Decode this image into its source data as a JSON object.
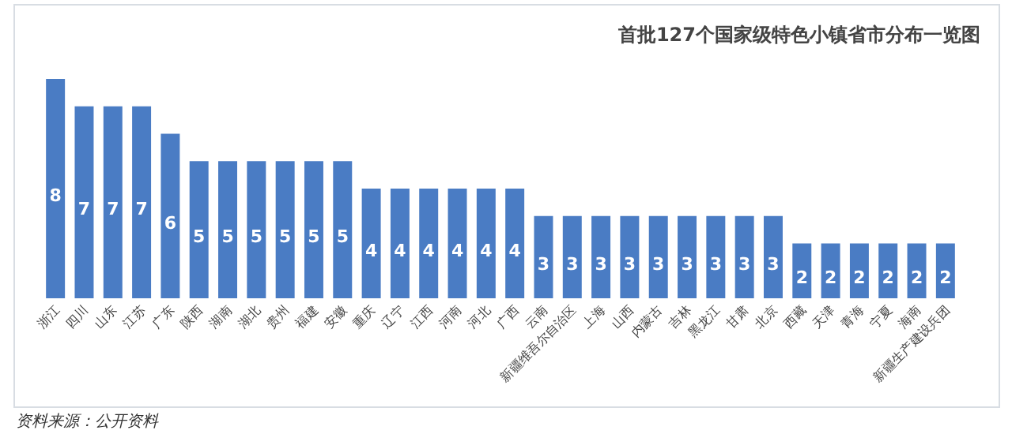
{
  "chart_data": {
    "type": "bar",
    "title": "首批127个国家级特色小镇省市分布一览图",
    "categories": [
      "浙江",
      "四川",
      "山东",
      "江苏",
      "广东",
      "陕西",
      "湖南",
      "湖北",
      "贵州",
      "福建",
      "安徽",
      "重庆",
      "辽宁",
      "江西",
      "河南",
      "河北",
      "广西",
      "云南",
      "新疆维吾尔自治区",
      "上海",
      "山西",
      "内蒙古",
      "吉林",
      "黑龙江",
      "甘肃",
      "北京",
      "西藏",
      "天津",
      "青海",
      "宁夏",
      "海南",
      "新疆生产建设兵团"
    ],
    "values": [
      8,
      7,
      7,
      7,
      6,
      5,
      5,
      5,
      5,
      5,
      5,
      4,
      4,
      4,
      4,
      4,
      4,
      3,
      3,
      3,
      3,
      3,
      3,
      3,
      3,
      3,
      2,
      2,
      2,
      2,
      2,
      2
    ],
    "color": "#4a7cc4",
    "data_labels": true,
    "annotations": [
      "资料来源：公开资料"
    ]
  }
}
